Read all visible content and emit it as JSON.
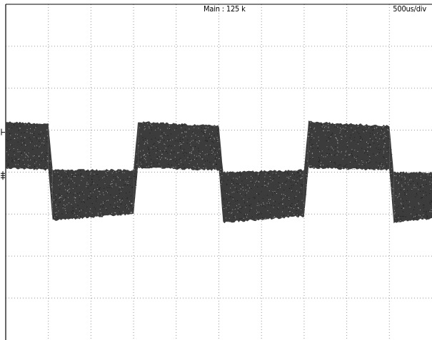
{
  "header": {
    "record_length": "Main : 125 k",
    "timebase": "500us/div"
  },
  "chart_data": {
    "type": "line",
    "title": "",
    "xlabel": "",
    "ylabel": "",
    "grid": true,
    "x_divisions": 10,
    "y_divisions": 8,
    "time_per_div": "500us/div",
    "xlim": [
      0,
      10
    ],
    "ylim": [
      -4,
      4
    ],
    "series": [
      {
        "style": "noise-band",
        "color": "#3c3c3c",
        "segments": [
          {
            "x0": 0.0,
            "x1": 1.0,
            "top0": 1.2,
            "top1": 1.15,
            "bot0": 0.1,
            "bot1": 0.05
          },
          {
            "x0": 1.0,
            "x1": 1.1,
            "top0": 1.15,
            "top1": 0.05,
            "bot0": 0.05,
            "bot1": -1.15
          },
          {
            "x0": 1.1,
            "x1": 3.0,
            "top0": 0.05,
            "top1": 0.05,
            "bot0": -1.15,
            "bot1": -1.0
          },
          {
            "x0": 3.0,
            "x1": 3.1,
            "top0": 0.05,
            "top1": 1.2,
            "bot0": -1.0,
            "bot1": 0.1
          },
          {
            "x0": 3.1,
            "x1": 5.0,
            "top0": 1.2,
            "top1": 1.1,
            "bot0": 0.1,
            "bot1": 0.05
          },
          {
            "x0": 5.0,
            "x1": 5.1,
            "top0": 1.1,
            "top1": 0.0,
            "bot0": 0.05,
            "bot1": -1.2
          },
          {
            "x0": 5.1,
            "x1": 7.0,
            "top0": 0.0,
            "top1": 0.05,
            "bot0": -1.2,
            "bot1": -1.05
          },
          {
            "x0": 7.0,
            "x1": 7.1,
            "top0": 0.05,
            "top1": 1.2,
            "bot0": -1.05,
            "bot1": 0.1
          },
          {
            "x0": 7.1,
            "x1": 9.0,
            "top0": 1.2,
            "top1": 1.1,
            "bot0": 0.1,
            "bot1": 0.05
          },
          {
            "x0": 9.0,
            "x1": 9.1,
            "top0": 1.1,
            "top1": 0.0,
            "bot0": 0.05,
            "bot1": -1.2
          },
          {
            "x0": 9.1,
            "x1": 10.0,
            "top0": 0.0,
            "top1": 0.0,
            "bot0": -1.2,
            "bot1": -1.1
          }
        ]
      }
    ],
    "markers": {
      "trigger_level": 0.95,
      "ground_level": -0.08
    }
  }
}
